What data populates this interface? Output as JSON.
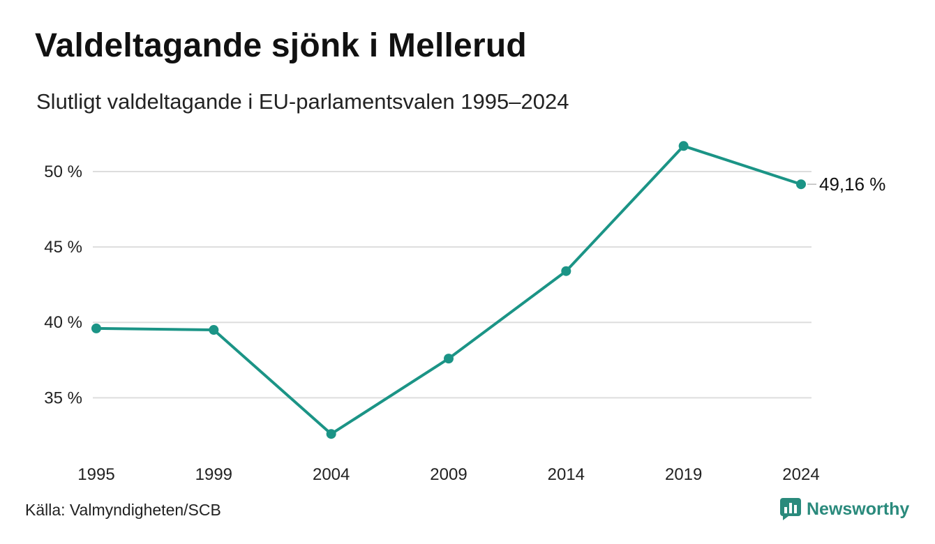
{
  "header": {
    "title": "Valdeltagande sjönk i Mellerud",
    "subtitle": "Slutligt valdeltagande i EU-parlamentsvalen 1995–2024"
  },
  "footer": {
    "source": "Källa: Valmyndigheten/SCB",
    "brand": "Newsworthy"
  },
  "colors": {
    "line": "#1b9486",
    "grid": "#dddddd",
    "brand": "#2a8a7c"
  },
  "chart_data": {
    "type": "line",
    "title": "Valdeltagande sjönk i Mellerud",
    "subtitle": "Slutligt valdeltagande i EU-parlamentsvalen 1995–2024",
    "xlabel": "",
    "ylabel": "",
    "categories": [
      "1995",
      "1999",
      "2004",
      "2009",
      "2014",
      "2019",
      "2024"
    ],
    "series": [
      {
        "values": [
          39.6,
          39.5,
          32.6,
          37.6,
          43.4,
          51.7,
          49.16
        ]
      }
    ],
    "yticks": [
      35,
      40,
      45,
      50
    ],
    "ytick_labels": [
      "35 %",
      "40 %",
      "45 %",
      "50 %"
    ],
    "ylim": [
      31.5,
      52.5
    ],
    "end_label": "49,16 %",
    "grid": true,
    "legend": "none"
  }
}
